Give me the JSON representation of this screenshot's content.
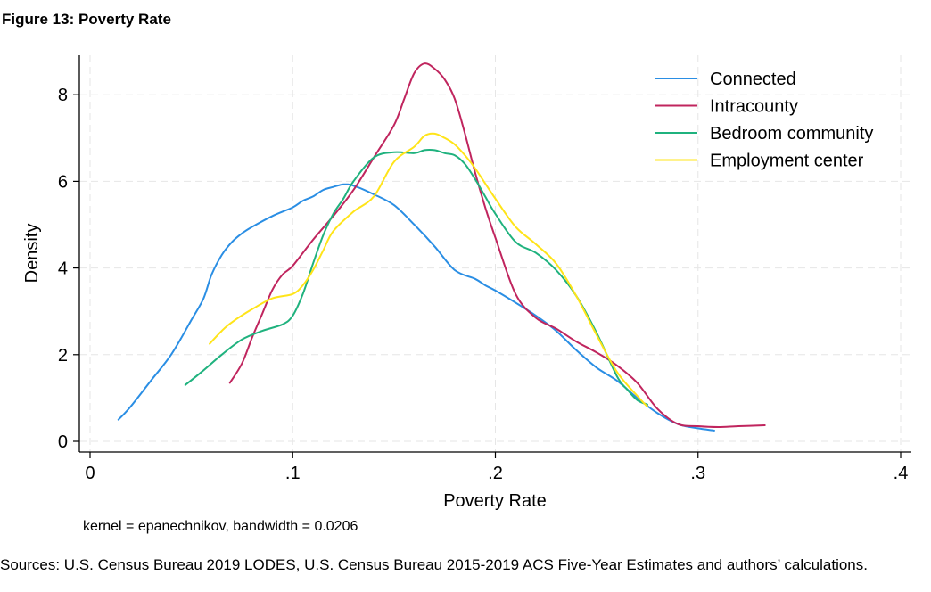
{
  "figure_title": "Figure 13: Poverty Rate",
  "source_note": "Sources: U.S. Census Bureau 2019 LODES, U.S. Census Bureau 2015-2019 ACS Five-Year Estimates and authors’ calculations.",
  "chart_data": {
    "type": "line",
    "title": "Figure 13: Poverty Rate",
    "xlabel": "Poverty Rate",
    "ylabel": "Density",
    "note": "kernel = epanechnikov, bandwidth = 0.0206",
    "xlim": [
      0,
      0.4
    ],
    "ylim": [
      0,
      9
    ],
    "xticks": [
      0,
      0.1,
      0.2,
      0.3,
      0.4
    ],
    "xtick_labels": [
      "0",
      ".1",
      ".2",
      ".3",
      ".4"
    ],
    "yticks": [
      0,
      2,
      4,
      6,
      8
    ],
    "ytick_labels": [
      "0",
      "2",
      "4",
      "6",
      "8"
    ],
    "grid": true,
    "legend_position": "top-right",
    "series": [
      {
        "name": "Connected",
        "color": "#2a8ee4",
        "x": [
          0.014,
          0.02,
          0.03,
          0.04,
          0.05,
          0.056,
          0.06,
          0.065,
          0.07,
          0.075,
          0.08,
          0.09,
          0.1,
          0.105,
          0.11,
          0.115,
          0.12,
          0.125,
          0.13,
          0.14,
          0.15,
          0.16,
          0.17,
          0.18,
          0.19,
          0.195,
          0.2,
          0.21,
          0.22,
          0.23,
          0.24,
          0.25,
          0.26,
          0.27,
          0.28,
          0.29,
          0.3,
          0.308
        ],
        "y": [
          0.5,
          0.8,
          1.4,
          2.0,
          2.8,
          3.3,
          3.85,
          4.3,
          4.6,
          4.8,
          4.95,
          5.2,
          5.4,
          5.55,
          5.65,
          5.8,
          5.87,
          5.93,
          5.9,
          5.7,
          5.45,
          5.0,
          4.5,
          3.95,
          3.75,
          3.6,
          3.48,
          3.2,
          2.9,
          2.55,
          2.1,
          1.7,
          1.4,
          1.0,
          0.65,
          0.4,
          0.3,
          0.25
        ]
      },
      {
        "name": "Intracounty",
        "color": "#c0255e",
        "x": [
          0.069,
          0.075,
          0.08,
          0.085,
          0.09,
          0.095,
          0.1,
          0.11,
          0.12,
          0.13,
          0.14,
          0.15,
          0.155,
          0.16,
          0.165,
          0.17,
          0.175,
          0.18,
          0.185,
          0.19,
          0.195,
          0.2,
          0.21,
          0.22,
          0.23,
          0.24,
          0.25,
          0.26,
          0.27,
          0.28,
          0.29,
          0.3,
          0.31,
          0.32,
          0.333
        ],
        "y": [
          1.35,
          1.8,
          2.4,
          2.95,
          3.5,
          3.85,
          4.05,
          4.65,
          5.2,
          5.8,
          6.55,
          7.3,
          7.9,
          8.5,
          8.72,
          8.6,
          8.35,
          7.9,
          7.1,
          6.2,
          5.4,
          4.7,
          3.4,
          2.85,
          2.6,
          2.3,
          2.05,
          1.75,
          1.35,
          0.75,
          0.4,
          0.35,
          0.33,
          0.35,
          0.37
        ]
      },
      {
        "name": "Bedroom community",
        "color": "#1fb27e",
        "x": [
          0.047,
          0.055,
          0.065,
          0.075,
          0.085,
          0.095,
          0.1,
          0.105,
          0.11,
          0.115,
          0.12,
          0.125,
          0.13,
          0.14,
          0.15,
          0.16,
          0.165,
          0.17,
          0.175,
          0.18,
          0.185,
          0.19,
          0.195,
          0.2,
          0.21,
          0.22,
          0.23,
          0.24,
          0.25,
          0.26,
          0.265,
          0.27,
          0.275
        ],
        "y": [
          1.3,
          1.6,
          2.0,
          2.35,
          2.55,
          2.7,
          2.9,
          3.4,
          4.1,
          4.75,
          5.25,
          5.6,
          6.0,
          6.55,
          6.67,
          6.65,
          6.72,
          6.72,
          6.65,
          6.6,
          6.4,
          6.05,
          5.65,
          5.25,
          4.6,
          4.35,
          3.95,
          3.35,
          2.5,
          1.5,
          1.2,
          0.95,
          0.85
        ]
      },
      {
        "name": "Employment center",
        "color": "#ffe419",
        "x": [
          0.059,
          0.065,
          0.07,
          0.08,
          0.09,
          0.1,
          0.105,
          0.11,
          0.115,
          0.12,
          0.13,
          0.14,
          0.15,
          0.16,
          0.165,
          0.17,
          0.175,
          0.18,
          0.185,
          0.19,
          0.2,
          0.21,
          0.22,
          0.23,
          0.24,
          0.25,
          0.26,
          0.27,
          0.275
        ],
        "y": [
          2.25,
          2.55,
          2.75,
          3.05,
          3.3,
          3.4,
          3.6,
          3.95,
          4.4,
          4.85,
          5.3,
          5.65,
          6.45,
          6.8,
          7.05,
          7.1,
          7.0,
          6.85,
          6.6,
          6.3,
          5.6,
          4.95,
          4.55,
          4.1,
          3.35,
          2.45,
          1.6,
          1.05,
          0.8
        ]
      }
    ]
  }
}
